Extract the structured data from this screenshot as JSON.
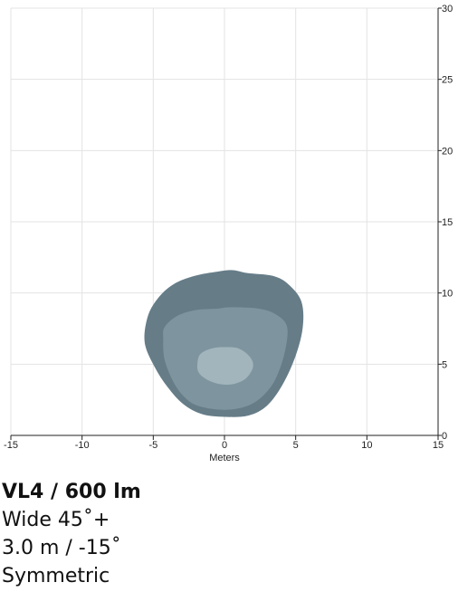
{
  "chart_data": {
    "type": "contour",
    "xlabel": "Meters",
    "ylabel": "",
    "xlim": [
      -15,
      15
    ],
    "ylim": [
      0,
      30
    ],
    "x_ticks": [
      "-15",
      "-10",
      "-5",
      "0",
      "5",
      "10",
      "15"
    ],
    "y_ticks": [
      "0",
      "5",
      "10",
      "15",
      "20",
      "25",
      "30"
    ],
    "y_axis_position": "right",
    "grid": true,
    "contours": [
      {
        "color": "#667d88",
        "points": [
          [
            -5.6,
            6.5
          ],
          [
            -5.4,
            8.3
          ],
          [
            -4.7,
            9.6
          ],
          [
            -3.6,
            10.6
          ],
          [
            -2.1,
            11.2
          ],
          [
            -0.5,
            11.5
          ],
          [
            0.6,
            11.6
          ],
          [
            1.6,
            11.4
          ],
          [
            3.4,
            11.2
          ],
          [
            4.5,
            10.6
          ],
          [
            5.4,
            9.4
          ],
          [
            5.5,
            7.6
          ],
          [
            5.0,
            5.6
          ],
          [
            4.1,
            3.6
          ],
          [
            3.0,
            2.1
          ],
          [
            1.7,
            1.4
          ],
          [
            0.0,
            1.3
          ],
          [
            -1.6,
            1.5
          ],
          [
            -2.9,
            2.2
          ],
          [
            -4.0,
            3.4
          ],
          [
            -4.9,
            4.8
          ]
        ]
      },
      {
        "color": "#7e959f",
        "points": [
          [
            -4.3,
            6.8
          ],
          [
            -4.2,
            7.6
          ],
          [
            -3.3,
            8.4
          ],
          [
            -2.0,
            8.8
          ],
          [
            -0.5,
            8.9
          ],
          [
            0.5,
            9.0
          ],
          [
            2.4,
            8.9
          ],
          [
            3.6,
            8.5
          ],
          [
            4.4,
            7.6
          ],
          [
            4.2,
            5.7
          ],
          [
            3.5,
            3.8
          ],
          [
            2.5,
            2.6
          ],
          [
            1.4,
            2.0
          ],
          [
            0.0,
            1.8
          ],
          [
            -1.6,
            2.0
          ],
          [
            -2.6,
            2.5
          ],
          [
            -3.5,
            3.6
          ],
          [
            -4.2,
            5.3
          ]
        ]
      },
      {
        "color": "#a2b5bd",
        "points": [
          [
            -1.9,
            5.0
          ],
          [
            -1.7,
            5.7
          ],
          [
            -0.9,
            6.1
          ],
          [
            0.0,
            6.2
          ],
          [
            1.0,
            6.1
          ],
          [
            1.8,
            5.5
          ],
          [
            2.0,
            4.8
          ],
          [
            1.5,
            4.0
          ],
          [
            0.6,
            3.6
          ],
          [
            -0.3,
            3.6
          ],
          [
            -1.2,
            3.9
          ],
          [
            -1.8,
            4.4
          ]
        ]
      }
    ]
  },
  "caption": {
    "title": "VL4 / 600 lm",
    "beam": "Wide 45˚+",
    "mount": "3.0 m / -15˚",
    "distribution": "Symmetric"
  }
}
